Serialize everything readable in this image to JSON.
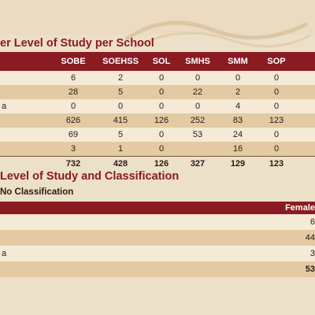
{
  "section1": {
    "title": "er Level of Study per School",
    "headers": [
      "",
      "SOBE",
      "SOEHSS",
      "SOL",
      "SMHS",
      "SMM",
      "SOP",
      ""
    ],
    "rows": [
      {
        "label": "",
        "values": [
          "6",
          "2",
          "0",
          "0",
          "0",
          "0"
        ]
      },
      {
        "label": "",
        "values": [
          "28",
          "5",
          "0",
          "22",
          "2",
          "0"
        ]
      },
      {
        "label": "a",
        "values": [
          "0",
          "0",
          "0",
          "0",
          "4",
          "0"
        ]
      },
      {
        "label": "",
        "values": [
          "626",
          "415",
          "126",
          "252",
          "83",
          "123"
        ]
      },
      {
        "label": "",
        "values": [
          "69",
          "5",
          "0",
          "53",
          "24",
          "0"
        ]
      },
      {
        "label": "",
        "values": [
          "3",
          "1",
          "0",
          "",
          "16",
          "0"
        ]
      }
    ],
    "totals": {
      "label": "",
      "values": [
        "732",
        "428",
        "126",
        "327",
        "129",
        "123"
      ]
    }
  },
  "section2": {
    "title": "Level of Study and Classification",
    "subtitle": "No Classification",
    "column_header": "Female",
    "rows": [
      {
        "label": "",
        "value": "6"
      },
      {
        "label": "",
        "value": "44"
      },
      {
        "label": "a",
        "value": "3"
      }
    ],
    "total": {
      "label": "",
      "value": "53"
    }
  },
  "colors": {
    "accent": "#8b1a23",
    "background": "#ede0c8",
    "row_light": "#f4ead6",
    "row_dark": "#e3caa2"
  }
}
